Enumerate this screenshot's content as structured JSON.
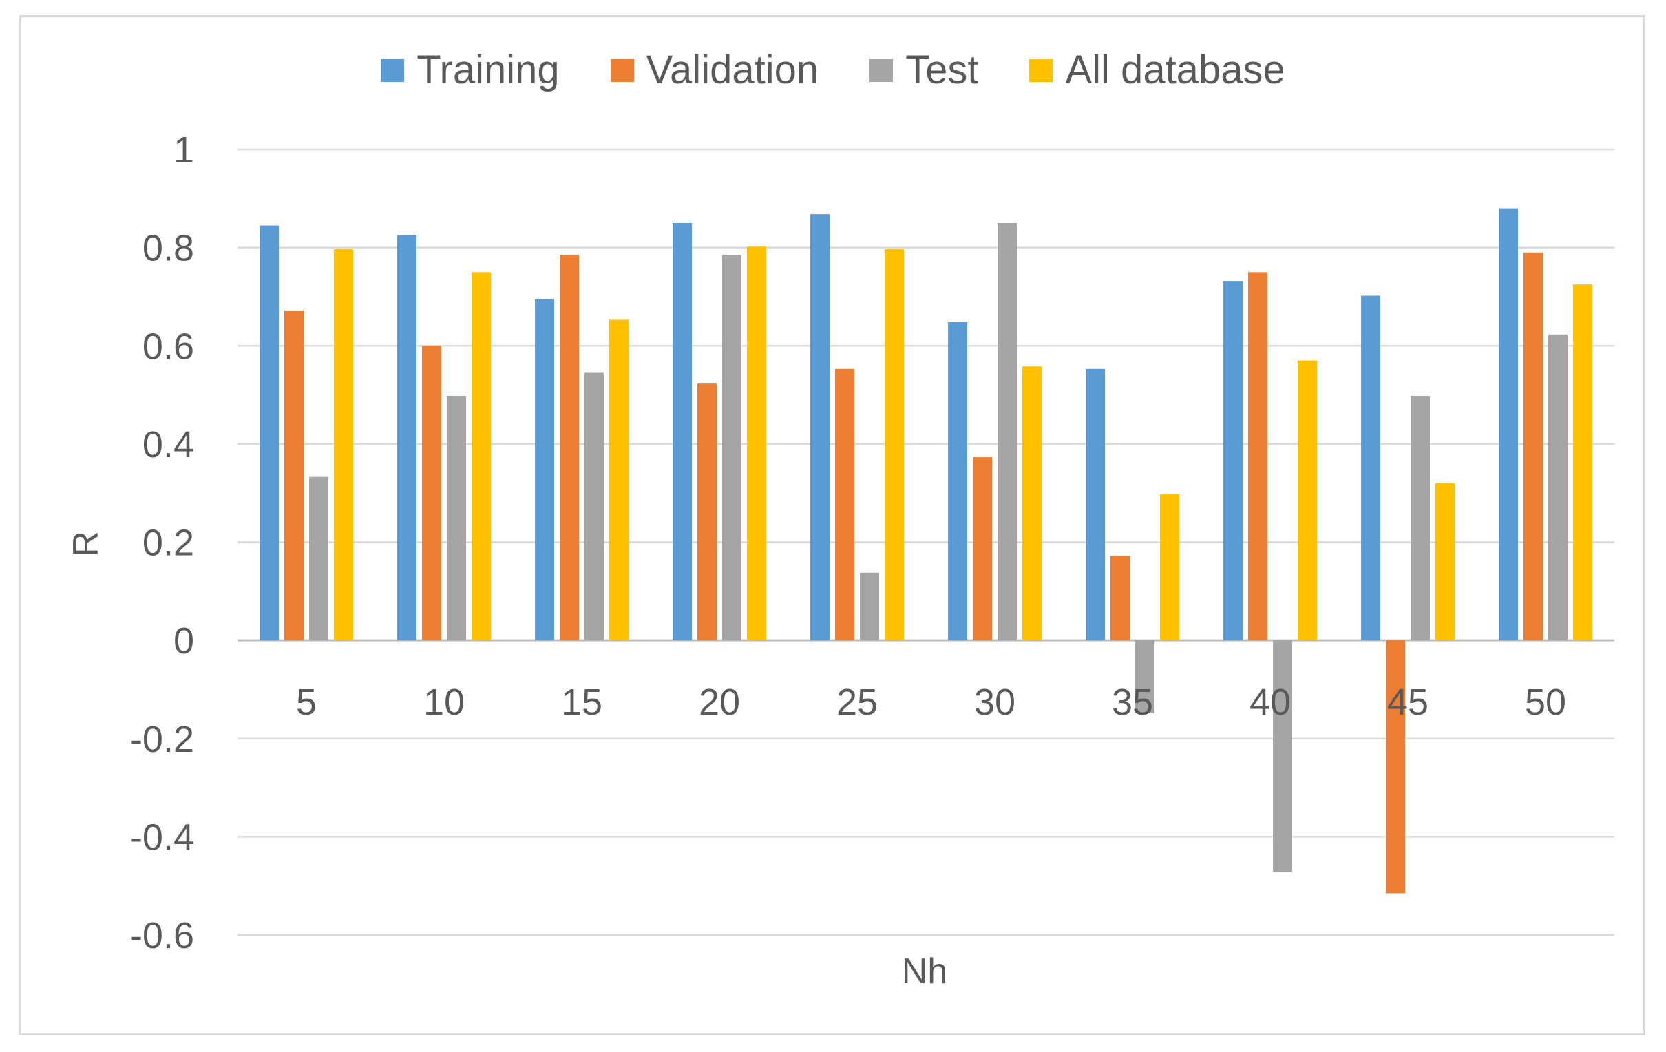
{
  "chart_data": {
    "type": "bar",
    "title": "",
    "xlabel": "Nh",
    "ylabel": "R",
    "ylim": [
      -0.6,
      1
    ],
    "yticks": [
      1,
      0.8,
      0.6,
      0.4,
      0.2,
      0,
      -0.2,
      -0.4,
      -0.6
    ],
    "ytick_labels": [
      "1",
      "0.8",
      "0.6",
      "0.4",
      "0.2",
      "0",
      "-0.2",
      "-0.4",
      "-0.6"
    ],
    "grid": true,
    "legend_position": "top",
    "categories": [
      "5",
      "10",
      "15",
      "20",
      "25",
      "30",
      "35",
      "40",
      "45",
      "50"
    ],
    "series": [
      {
        "name": "Training",
        "color": "#5b9bd5",
        "values": [
          0.845,
          0.825,
          0.695,
          0.85,
          0.868,
          0.648,
          0.553,
          0.732,
          0.702,
          0.88
        ]
      },
      {
        "name": "Validation",
        "color": "#ed7d31",
        "values": [
          0.672,
          0.6,
          0.785,
          0.523,
          0.553,
          0.373,
          0.172,
          0.75,
          -0.515,
          0.79
        ]
      },
      {
        "name": "Test",
        "color": "#a5a5a5",
        "values": [
          0.333,
          0.498,
          0.545,
          0.785,
          0.138,
          0.85,
          -0.148,
          -0.472,
          0.498,
          0.623
        ]
      },
      {
        "name": "All database",
        "color": "#ffc000",
        "values": [
          0.797,
          0.75,
          0.653,
          0.802,
          0.797,
          0.558,
          0.298,
          0.57,
          0.32,
          0.725
        ]
      }
    ]
  }
}
